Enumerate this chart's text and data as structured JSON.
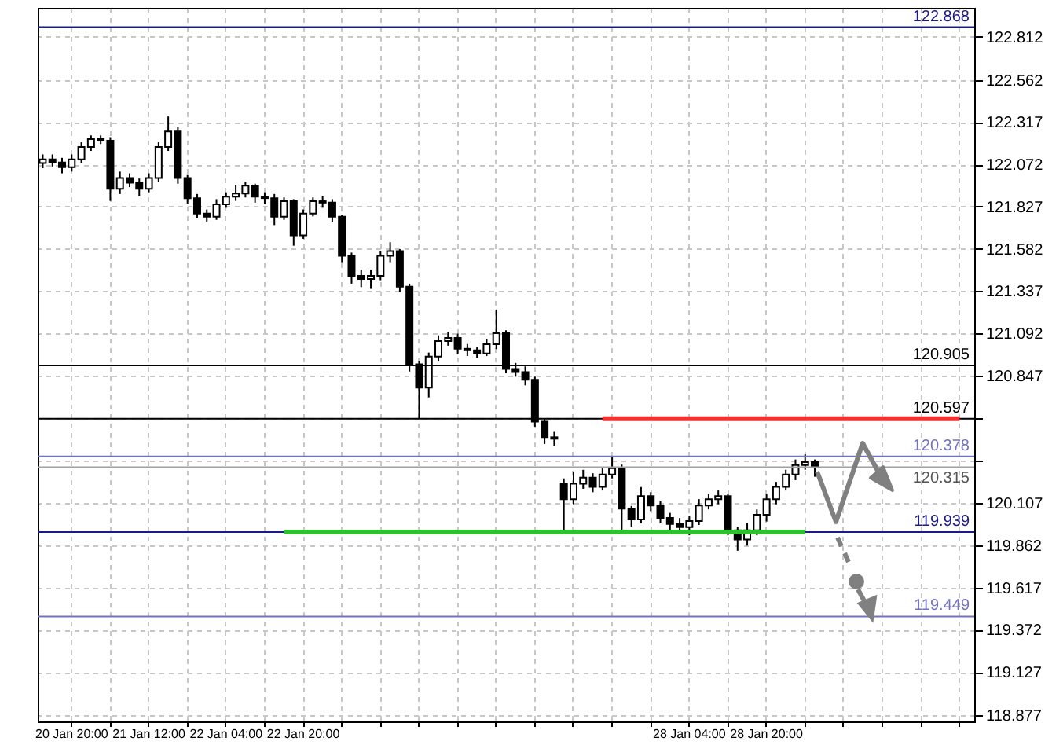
{
  "chart_data": {
    "type": "candlestick",
    "categories": [
      null,
      null,
      null,
      "20 Jan 20:00",
      null,
      null,
      null,
      null,
      null,
      null,
      null,
      "21 Jan 12:00",
      null,
      null,
      null,
      null,
      null,
      null,
      null,
      "22 Jan 04:00",
      null,
      null,
      null,
      null,
      null,
      null,
      null,
      "22 Jan 20:00",
      null,
      null,
      null,
      null,
      null,
      null,
      null,
      null,
      null,
      null,
      null,
      null,
      null,
      null,
      null,
      null,
      null,
      null,
      null,
      null,
      null,
      null,
      null,
      null,
      null,
      null,
      null,
      null,
      null,
      null,
      null,
      null,
      null,
      null,
      null,
      null,
      null,
      null,
      null,
      "28 Jan 04:00",
      null,
      null,
      null,
      null,
      null,
      null,
      null,
      "28 Jan 20:00",
      null,
      null,
      null,
      null,
      null,
      null,
      null,
      null,
      null,
      null,
      null,
      null,
      null,
      null,
      null,
      null,
      null,
      null,
      null,
      null,
      null
    ],
    "ohlc": [
      [
        122.08,
        122.13,
        122.05,
        122.101
      ],
      [
        122.101,
        122.13,
        122.06,
        122.083
      ],
      [
        122.083,
        122.11,
        122.02,
        122.056
      ],
      [
        122.056,
        122.13,
        122.03,
        122.101
      ],
      [
        122.101,
        122.2,
        122.08,
        122.173
      ],
      [
        122.173,
        122.24,
        122.15,
        122.218
      ],
      [
        122.22,
        122.24,
        122.19,
        122.21
      ],
      [
        122.21,
        122.23,
        121.86,
        121.93
      ],
      [
        121.93,
        122.03,
        121.9,
        121.993
      ],
      [
        121.993,
        122.02,
        121.94,
        121.966
      ],
      [
        121.966,
        121.99,
        121.89,
        121.93
      ],
      [
        121.93,
        122.02,
        121.91,
        121.993
      ],
      [
        121.993,
        122.2,
        121.97,
        122.173
      ],
      [
        122.173,
        122.35,
        122.15,
        122.263
      ],
      [
        122.263,
        122.29,
        121.96,
        121.993
      ],
      [
        121.993,
        122.01,
        121.84,
        121.876
      ],
      [
        121.876,
        121.9,
        121.76,
        121.786
      ],
      [
        121.786,
        121.81,
        121.74,
        121.768
      ],
      [
        121.768,
        121.87,
        121.75,
        121.84
      ],
      [
        121.84,
        121.91,
        121.82,
        121.885
      ],
      [
        121.885,
        121.95,
        121.86,
        121.903
      ],
      [
        121.903,
        121.97,
        121.88,
        121.948
      ],
      [
        121.948,
        121.96,
        121.85,
        121.885
      ],
      [
        121.885,
        121.91,
        121.84,
        121.876
      ],
      [
        121.876,
        121.9,
        121.72,
        121.768
      ],
      [
        121.768,
        121.88,
        121.75,
        121.858
      ],
      [
        121.858,
        121.87,
        121.6,
        121.66
      ],
      [
        121.66,
        121.81,
        121.64,
        121.786
      ],
      [
        121.786,
        121.88,
        121.77,
        121.858
      ],
      [
        121.858,
        121.89,
        121.82,
        121.85
      ],
      [
        121.85,
        121.87,
        121.74,
        121.768
      ],
      [
        121.768,
        121.78,
        121.5,
        121.542
      ],
      [
        121.542,
        121.56,
        121.38,
        121.425
      ],
      [
        121.425,
        121.46,
        121.36,
        121.407
      ],
      [
        121.407,
        121.46,
        121.35,
        121.425
      ],
      [
        121.425,
        121.57,
        121.4,
        121.542
      ],
      [
        121.542,
        121.62,
        121.5,
        121.569
      ],
      [
        121.569,
        121.58,
        121.33,
        121.362
      ],
      [
        121.362,
        121.38,
        120.87,
        120.912
      ],
      [
        120.912,
        120.93,
        120.6,
        120.777
      ],
      [
        120.777,
        120.98,
        120.72,
        120.957
      ],
      [
        120.957,
        121.08,
        120.93,
        121.047
      ],
      [
        121.047,
        121.1,
        121.02,
        121.065
      ],
      [
        121.065,
        121.09,
        120.97,
        121.002
      ],
      [
        121.002,
        121.03,
        120.96,
        120.993
      ],
      [
        120.993,
        121.01,
        120.95,
        120.975
      ],
      [
        120.975,
        121.06,
        120.96,
        121.029
      ],
      [
        121.029,
        121.23,
        121.0,
        121.092
      ],
      [
        121.092,
        121.11,
        120.86,
        120.885
      ],
      [
        120.885,
        120.92,
        120.84,
        120.867
      ],
      [
        120.867,
        120.9,
        120.79,
        120.822
      ],
      [
        120.822,
        120.84,
        120.55,
        120.579
      ],
      [
        120.579,
        120.6,
        120.45,
        120.489
      ],
      [
        120.489,
        120.52,
        120.44,
        120.48
      ],
      [
        120.22,
        120.25,
        119.94,
        120.129
      ],
      [
        120.129,
        120.29,
        120.1,
        120.219
      ],
      [
        120.219,
        120.3,
        120.19,
        120.255
      ],
      [
        120.255,
        120.28,
        120.17,
        120.201
      ],
      [
        120.201,
        120.31,
        120.18,
        120.273
      ],
      [
        120.273,
        120.38,
        120.25,
        120.309
      ],
      [
        120.309,
        120.33,
        119.94,
        120.075
      ],
      [
        120.075,
        120.09,
        119.97,
        120.012
      ],
      [
        120.012,
        120.2,
        119.99,
        120.147
      ],
      [
        120.147,
        120.17,
        120.06,
        120.093
      ],
      [
        120.093,
        120.12,
        119.99,
        120.021
      ],
      [
        120.021,
        120.05,
        119.95,
        119.985
      ],
      [
        119.985,
        120.02,
        119.93,
        119.967
      ],
      [
        119.967,
        120.03,
        119.92,
        120.003
      ],
      [
        120.003,
        120.13,
        119.98,
        120.093
      ],
      [
        120.093,
        120.16,
        120.07,
        120.129
      ],
      [
        120.129,
        120.18,
        120.1,
        120.147
      ],
      [
        120.147,
        120.16,
        119.92,
        119.949
      ],
      [
        119.949,
        119.97,
        119.83,
        119.895
      ],
      [
        119.895,
        119.99,
        119.86,
        119.949
      ],
      [
        119.949,
        120.07,
        119.92,
        120.039
      ],
      [
        120.039,
        120.16,
        120.0,
        120.129
      ],
      [
        120.129,
        120.23,
        120.1,
        120.201
      ],
      [
        120.201,
        120.3,
        120.18,
        120.273
      ],
      [
        120.273,
        120.36,
        120.24,
        120.327
      ],
      [
        120.327,
        120.39,
        120.3,
        120.345
      ],
      [
        120.345,
        120.36,
        120.26,
        120.315
      ],
      null,
      null,
      null,
      null,
      null,
      null,
      null,
      null,
      null,
      null,
      null,
      null,
      null,
      null,
      null,
      null
    ],
    "series": [
      {
        "type": "line",
        "color": "#2ec02e",
        "values": [
          null,
          null,
          null,
          null,
          null,
          null,
          null,
          null,
          null,
          null,
          null,
          null,
          null,
          null,
          null,
          null,
          null,
          null,
          null,
          null,
          null,
          null,
          null,
          null,
          null,
          119.939,
          119.939,
          119.939,
          119.939,
          119.939,
          119.939,
          119.939,
          119.939,
          119.939,
          119.939,
          119.939,
          119.939,
          119.939,
          119.939,
          119.939,
          119.939,
          119.939,
          119.939,
          119.939,
          119.939,
          119.939,
          119.939,
          119.939,
          119.939,
          119.939,
          119.939,
          119.939,
          119.939,
          119.939,
          119.939,
          119.939,
          119.939,
          119.939,
          119.939,
          119.939,
          119.939,
          119.939,
          119.939,
          119.939,
          119.939,
          119.939,
          119.939,
          119.939,
          119.939,
          119.939,
          119.939,
          119.939,
          119.939,
          119.939,
          119.939,
          119.939,
          119.939,
          119.939,
          119.939,
          119.939,
          null,
          null,
          null,
          null,
          null,
          null,
          null,
          null,
          null,
          null,
          null,
          null,
          null,
          null,
          null,
          null,
          null
        ]
      },
      {
        "type": "line",
        "color": "#f03232",
        "values": [
          null,
          null,
          null,
          null,
          null,
          null,
          null,
          null,
          null,
          null,
          null,
          null,
          null,
          null,
          null,
          null,
          null,
          null,
          null,
          null,
          null,
          null,
          null,
          null,
          null,
          null,
          null,
          null,
          null,
          null,
          null,
          null,
          null,
          null,
          null,
          null,
          null,
          null,
          null,
          null,
          null,
          null,
          null,
          null,
          null,
          null,
          null,
          null,
          null,
          null,
          null,
          null,
          null,
          null,
          null,
          null,
          null,
          null,
          120.597,
          120.597,
          120.597,
          120.597,
          120.597,
          120.597,
          120.597,
          120.597,
          120.597,
          120.597,
          120.597,
          120.597,
          120.597,
          120.597,
          120.597,
          120.597,
          120.597,
          120.597,
          120.597,
          120.597,
          120.597,
          120.597,
          120.597,
          120.597,
          120.597,
          120.597,
          120.597,
          120.597,
          120.597,
          120.597,
          120.597,
          120.597,
          120.597,
          120.597,
          120.597,
          120.597,
          120.597,
          120.597,
          null
        ]
      }
    ],
    "ylim": [
      118.84,
      122.98
    ],
    "yticks": [
      118.877,
      119.127,
      119.372,
      119.617,
      119.862,
      120.107,
      {
        "value": 120.352,
        "label": null
      },
      {
        "value": 120.597,
        "label": null
      },
      120.847,
      121.092,
      121.337,
      121.582,
      121.827,
      122.072,
      122.317,
      122.562,
      122.812
    ],
    "ref_lines": [
      {
        "axis": "y",
        "value": 122.868,
        "label": "122.868",
        "color": "#1a1a8c"
      },
      {
        "axis": "y",
        "value": 120.905,
        "label": "120.905",
        "color": "#000000"
      },
      {
        "axis": "y",
        "value": 120.597,
        "label": "120.597",
        "color": "#000000"
      },
      {
        "axis": "y",
        "value": 120.378,
        "label": "120.378",
        "color": "#7272c4"
      },
      {
        "axis": "y",
        "value": 120.315,
        "label": "120.315",
        "color": "#a0a0a0"
      },
      {
        "axis": "y",
        "value": 119.939,
        "label": "119.939",
        "color": "#1a1a8c"
      },
      {
        "axis": "y",
        "value": 119.449,
        "label": "119.449",
        "color": "#7272c4"
      }
    ],
    "grid": true
  }
}
